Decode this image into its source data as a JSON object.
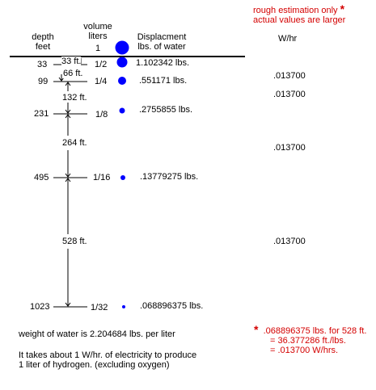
{
  "header": {
    "depth_label_1": "depth",
    "depth_label_2": "feet",
    "volume_label_1": "volume",
    "volume_label_2": "liters",
    "volume_label_3": "1",
    "displacement_label_1": "Displacment",
    "displacement_label_2": "lbs. of water",
    "note_line_1": "rough estimation only",
    "note_star": "*",
    "note_line_2": "actual values are larger",
    "power_label": "W/hr"
  },
  "rows": [
    {
      "depth": "33",
      "volume": "1/2",
      "displacement": "1.102342 lbs.",
      "power": ".013700"
    },
    {
      "depth": "99",
      "volume": "1/4",
      "displacement": ".551171 lbs.",
      "power": ".013700"
    },
    {
      "depth": "231",
      "volume": "1/8",
      "displacement": ".2755855 lbs.",
      "power": ".013700"
    },
    {
      "depth": "495",
      "volume": "1/16",
      "displacement": ".13779275 lbs.",
      "power": ".013700"
    },
    {
      "depth": "1023",
      "volume": "1/32",
      "displacement": ".068896375 lbs.",
      "power": ""
    }
  ],
  "intervals": [
    "33 ft.",
    "66 ft.",
    "132 ft.",
    "264 ft.",
    "528 ft."
  ],
  "footer": {
    "water_weight": "weight of water is 2.204684 lbs. per liter",
    "electricity_1": "It takes about 1 W/hr. of electricity to produce",
    "electricity_2": "1 liter of hydrogen. (excluding oxygen)",
    "calc_star": "*",
    "calc_1": ".068896375 lbs. for 528 ft.",
    "calc_2": "= 36.377286 ft./lbs.",
    "calc_3": "= .013700 W/hrs."
  },
  "colors": {
    "bubble": "#0000ff",
    "note": "#d40000",
    "line": "#000000"
  }
}
